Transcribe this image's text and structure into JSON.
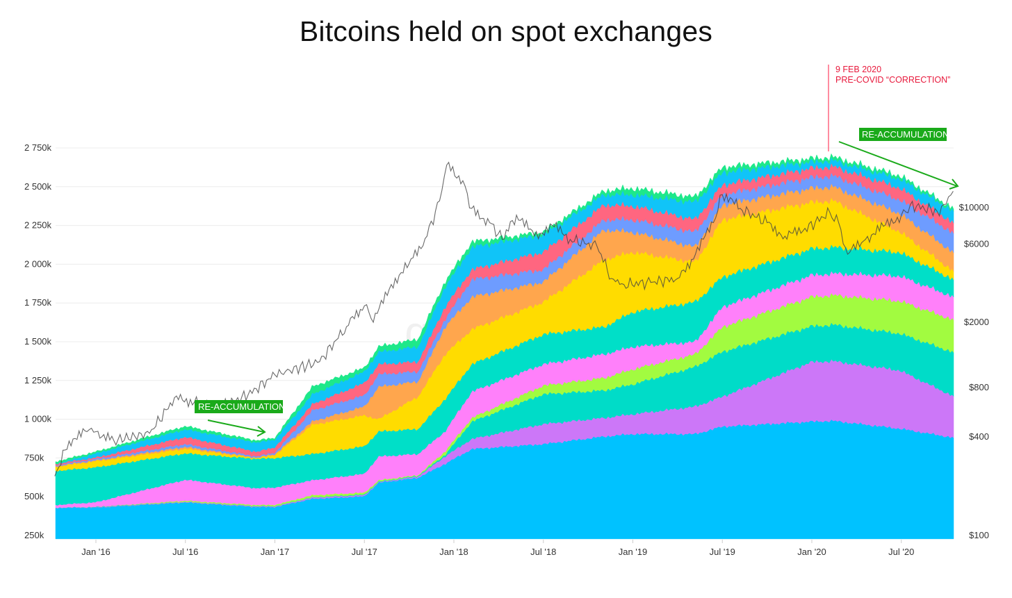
{
  "chart_data": {
    "type": "area",
    "stacked": true,
    "title": "Bitcoins held on spot exchanges",
    "watermark": "glassnode",
    "x_unit": "year (fractional)",
    "x": [
      2015.77,
      2016.0,
      2016.5,
      2016.9,
      2017.0,
      2017.21,
      2017.5,
      2017.58,
      2017.8,
      2017.95,
      2018.1,
      2018.5,
      2018.84,
      2019.0,
      2019.35,
      2019.5,
      2020.0,
      2020.12,
      2020.49,
      2020.79
    ],
    "values_are_cumulative_stack_tops_k_btc": true,
    "series": [
      {
        "color": "#00c2ff",
        "values": [
          430,
          430,
          464,
          434,
          434,
          487,
          503,
          591,
          623,
          712,
          808,
          840,
          889,
          905,
          905,
          953,
          985,
          990,
          940,
          882
        ]
      },
      {
        "color": "#cc77f8",
        "values": [
          430,
          432,
          468,
          438,
          438,
          495,
          511,
          595,
          631,
          760,
          873,
          969,
          1009,
          1033,
          1082,
          1146,
          1370,
          1375,
          1316,
          1150
        ]
      },
      {
        "color": "#00dcc8",
        "values": [
          430,
          435,
          468,
          440,
          440,
          497,
          515,
          598,
          635,
          770,
          985,
          1162,
          1186,
          1226,
          1339,
          1436,
          1600,
          1610,
          1554,
          1433
        ]
      },
      {
        "color": "#a2fb40",
        "values": [
          430,
          435,
          475,
          447,
          448,
          511,
          527,
          607,
          640,
          792,
          1009,
          1218,
          1267,
          1323,
          1420,
          1596,
          1790,
          1800,
          1764,
          1643
        ]
      },
      {
        "color": "#ff80fa",
        "values": [
          447,
          465,
          610,
          555,
          560,
          607,
          648,
          760,
          776,
          921,
          1178,
          1355,
          1420,
          1468,
          1500,
          1725,
          1930,
          1940,
          1925,
          1791
        ]
      },
      {
        "color": "#00dfc8",
        "values": [
          667,
          690,
          780,
          745,
          750,
          776,
          825,
          921,
          937,
          1130,
          1355,
          1548,
          1596,
          1693,
          1757,
          1918,
          2100,
          2110,
          2078,
          1903
        ]
      },
      {
        "color": "#ffdc00",
        "values": [
          694,
          730,
          810,
          750,
          770,
          965,
          1025,
          1001,
          1146,
          1419,
          1580,
          1757,
          2030,
          2079,
          2014,
          2288,
          2400,
          2410,
          2212,
          1957
        ]
      },
      {
        "color": "#ffa64d",
        "values": [
          698,
          735,
          822,
          752,
          776,
          987,
          1082,
          1210,
          1243,
          1596,
          1789,
          1886,
          2223,
          2207,
          2111,
          2384,
          2490,
          2500,
          2329,
          2078
        ]
      },
      {
        "color": "#6e9cff",
        "values": [
          703,
          744,
          840,
          760,
          785,
          1058,
          1154,
          1291,
          1307,
          1645,
          1902,
          1966,
          2288,
          2288,
          2207,
          2449,
          2560,
          2570,
          2418,
          2203
        ]
      },
      {
        "color": "#ff6680",
        "values": [
          712,
          753,
          885,
          790,
          820,
          1098,
          1234,
          1355,
          1371,
          1725,
          1966,
          2079,
          2384,
          2376,
          2288,
          2513,
          2620,
          2630,
          2494,
          2270
        ]
      },
      {
        "color": "#10c4f8",
        "values": [
          712,
          780,
          935,
          850,
          870,
          1162,
          1307,
          1435,
          1468,
          1854,
          2111,
          2191,
          2449,
          2449,
          2400,
          2593,
          2660,
          2670,
          2553,
          2346
        ]
      },
      {
        "color": "#1ee88a",
        "values": [
          725,
          790,
          955,
          862,
          880,
          1210,
          1331,
          1468,
          1516,
          1886,
          2143,
          2207,
          2473,
          2489,
          2432,
          2625,
          2680,
          2690,
          2571,
          2360
        ]
      }
    ],
    "price_line": {
      "color": "#444444",
      "scale": "log",
      "points": [
        [
          2015.77,
          230
        ],
        [
          2015.85,
          377
        ],
        [
          2015.95,
          430
        ],
        [
          2016.0,
          430
        ],
        [
          2016.1,
          380
        ],
        [
          2016.3,
          420
        ],
        [
          2016.45,
          710
        ],
        [
          2016.55,
          650
        ],
        [
          2016.7,
          610
        ],
        [
          2016.85,
          720
        ],
        [
          2017.0,
          955
        ],
        [
          2017.25,
          1150
        ],
        [
          2017.4,
          1880
        ],
        [
          2017.5,
          2520
        ],
        [
          2017.55,
          2000
        ],
        [
          2017.65,
          3400
        ],
        [
          2017.75,
          4550
        ],
        [
          2017.85,
          6700
        ],
        [
          2017.92,
          11000
        ],
        [
          2017.96,
          18200
        ],
        [
          2018.05,
          14600
        ],
        [
          2018.1,
          9900
        ],
        [
          2018.2,
          8100
        ],
        [
          2018.27,
          6400
        ],
        [
          2018.35,
          9000
        ],
        [
          2018.45,
          6700
        ],
        [
          2018.55,
          7800
        ],
        [
          2018.65,
          6400
        ],
        [
          2018.8,
          5800
        ],
        [
          2018.88,
          3700
        ],
        [
          2018.95,
          3400
        ],
        [
          2019.1,
          3500
        ],
        [
          2019.25,
          3700
        ],
        [
          2019.35,
          5200
        ],
        [
          2019.45,
          8100
        ],
        [
          2019.5,
          12000
        ],
        [
          2019.6,
          9900
        ],
        [
          2019.75,
          8100
        ],
        [
          2019.85,
          6700
        ],
        [
          2019.95,
          7200
        ],
        [
          2020.1,
          9400
        ],
        [
          2020.15,
          8100
        ],
        [
          2020.2,
          5200
        ],
        [
          2020.3,
          6400
        ],
        [
          2020.4,
          7700
        ],
        [
          2020.5,
          9000
        ],
        [
          2020.55,
          10400
        ],
        [
          2020.7,
          9500
        ],
        [
          2020.75,
          10500
        ],
        [
          2020.79,
          12600
        ]
      ]
    },
    "ylim": [
      228,
      2800
    ],
    "y_ticks": [
      {
        "value": 250,
        "label": "250k"
      },
      {
        "value": 500,
        "label": "500k"
      },
      {
        "value": 750,
        "label": "750k"
      },
      {
        "value": 1000,
        "label": "1 000k"
      },
      {
        "value": 1250,
        "label": "1 250k"
      },
      {
        "value": 1500,
        "label": "1 500k"
      },
      {
        "value": 1750,
        "label": "1 750k"
      },
      {
        "value": 2000,
        "label": "2 000k"
      },
      {
        "value": 2250,
        "label": "2 250k"
      },
      {
        "value": 2500,
        "label": "2 500k"
      },
      {
        "value": 2750,
        "label": "2 750k"
      }
    ],
    "y2_ticks": [
      {
        "value": 100,
        "label": "$100"
      },
      {
        "value": 400,
        "label": "$400"
      },
      {
        "value": 800,
        "label": "$800"
      },
      {
        "value": 2000,
        "label": "$2000"
      },
      {
        "value": 6000,
        "label": "$6000"
      },
      {
        "value": 10000,
        "label": "$10000"
      }
    ],
    "x_ticks": [
      {
        "value": 2016.0,
        "label": "Jan '16"
      },
      {
        "value": 2016.5,
        "label": "Jul '16"
      },
      {
        "value": 2017.0,
        "label": "Jan '17"
      },
      {
        "value": 2017.5,
        "label": "Jul '17"
      },
      {
        "value": 2018.0,
        "label": "Jan '18"
      },
      {
        "value": 2018.5,
        "label": "Jul '18"
      },
      {
        "value": 2019.0,
        "label": "Jan '19"
      },
      {
        "value": 2019.5,
        "label": "Jul '19"
      },
      {
        "value": 2020.0,
        "label": "Jan '20"
      },
      {
        "value": 2020.5,
        "label": "Jul '20"
      }
    ],
    "annotations": {
      "event_line": {
        "value": 2020.11,
        "date": "9 FEB 2020",
        "text": "PRE-COVID “CORRECTION”",
        "color": "#e8193c"
      },
      "reaccum_1": {
        "label": "RE-ACCUMULATION",
        "color": "#1aaa1a"
      },
      "reaccum_2": {
        "label": "RE-ACCUMULATION",
        "color": "#1aaa1a"
      }
    }
  }
}
